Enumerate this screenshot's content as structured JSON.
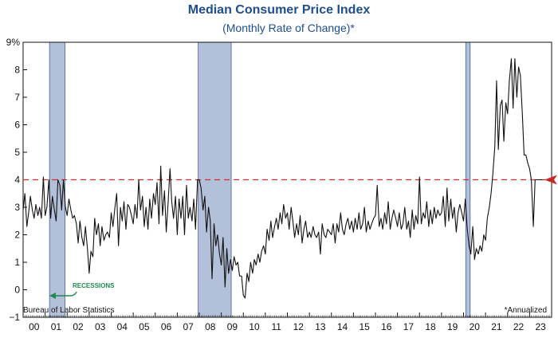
{
  "chart_data": {
    "type": "line",
    "title": "Median Consumer Price Index",
    "subtitle": "(Monthly Rate of Change)*",
    "source": "Bureau of Labor Statistics",
    "footnote": "*Annualized",
    "annotation": "RECESSIONS",
    "ylim": [
      -1,
      9
    ],
    "y_ticks": [
      "9%",
      "8",
      "7",
      "6",
      "5",
      "4",
      "3",
      "2",
      "1",
      "0",
      "−1"
    ],
    "y_tick_values": [
      9,
      8,
      7,
      6,
      5,
      4,
      3,
      2,
      1,
      0,
      -1
    ],
    "x_start_year": 2000,
    "x_end_year": 2024,
    "x_tick_labels": [
      "00",
      "01",
      "02",
      "03",
      "04",
      "05",
      "06",
      "07",
      "08",
      "09",
      "10",
      "11",
      "12",
      "13",
      "14",
      "15",
      "16",
      "17",
      "18",
      "19",
      "20",
      "21",
      "22",
      "23"
    ],
    "reference_line": {
      "value": 4.0,
      "style": "dashed",
      "color": "#d22b2b"
    },
    "recessions": [
      {
        "start": 2001.2,
        "end": 2001.9
      },
      {
        "start": 2007.95,
        "end": 2009.45
      },
      {
        "start": 2020.1,
        "end": 2020.3
      }
    ],
    "series": [
      {
        "color": "#111111",
        "x": [
          2000.0,
          2000.08,
          2000.17,
          2000.25,
          2000.33,
          2000.42,
          2000.5,
          2000.58,
          2000.67,
          2000.75,
          2000.83,
          2000.92,
          2001.0,
          2001.08,
          2001.17,
          2001.25,
          2001.33,
          2001.42,
          2001.5,
          2001.58,
          2001.67,
          2001.75,
          2001.83,
          2001.92,
          2002.0,
          2002.08,
          2002.17,
          2002.25,
          2002.33,
          2002.42,
          2002.5,
          2002.58,
          2002.67,
          2002.75,
          2002.83,
          2002.92,
          2003.0,
          2003.08,
          2003.17,
          2003.25,
          2003.33,
          2003.42,
          2003.5,
          2003.58,
          2003.67,
          2003.75,
          2003.83,
          2003.92,
          2004.0,
          2004.08,
          2004.17,
          2004.25,
          2004.33,
          2004.42,
          2004.5,
          2004.58,
          2004.67,
          2004.75,
          2004.83,
          2004.92,
          2005.0,
          2005.08,
          2005.17,
          2005.25,
          2005.33,
          2005.42,
          2005.5,
          2005.58,
          2005.67,
          2005.75,
          2005.83,
          2005.92,
          2006.0,
          2006.08,
          2006.17,
          2006.25,
          2006.33,
          2006.42,
          2006.5,
          2006.58,
          2006.67,
          2006.75,
          2006.83,
          2006.92,
          2007.0,
          2007.08,
          2007.17,
          2007.25,
          2007.33,
          2007.42,
          2007.5,
          2007.58,
          2007.67,
          2007.75,
          2007.83,
          2007.92,
          2008.0,
          2008.08,
          2008.17,
          2008.25,
          2008.33,
          2008.42,
          2008.5,
          2008.58,
          2008.67,
          2008.75,
          2008.83,
          2008.92,
          2009.0,
          2009.08,
          2009.17,
          2009.25,
          2009.33,
          2009.42,
          2009.5,
          2009.58,
          2009.67,
          2009.75,
          2009.83,
          2009.92,
          2010.0,
          2010.08,
          2010.17,
          2010.25,
          2010.33,
          2010.42,
          2010.5,
          2010.58,
          2010.67,
          2010.75,
          2010.83,
          2010.92,
          2011.0,
          2011.08,
          2011.17,
          2011.25,
          2011.33,
          2011.42,
          2011.5,
          2011.58,
          2011.67,
          2011.75,
          2011.83,
          2011.92,
          2012.0,
          2012.08,
          2012.17,
          2012.25,
          2012.33,
          2012.42,
          2012.5,
          2012.58,
          2012.67,
          2012.75,
          2012.83,
          2012.92,
          2013.0,
          2013.08,
          2013.17,
          2013.25,
          2013.33,
          2013.42,
          2013.5,
          2013.58,
          2013.67,
          2013.75,
          2013.83,
          2013.92,
          2014.0,
          2014.08,
          2014.17,
          2014.25,
          2014.33,
          2014.42,
          2014.5,
          2014.58,
          2014.67,
          2014.75,
          2014.83,
          2014.92,
          2015.0,
          2015.08,
          2015.17,
          2015.25,
          2015.33,
          2015.42,
          2015.5,
          2015.58,
          2015.67,
          2015.75,
          2015.83,
          2015.92,
          2016.0,
          2016.08,
          2016.17,
          2016.25,
          2016.33,
          2016.42,
          2016.5,
          2016.58,
          2016.67,
          2016.75,
          2016.83,
          2016.92,
          2017.0,
          2017.08,
          2017.17,
          2017.25,
          2017.33,
          2017.42,
          2017.5,
          2017.58,
          2017.67,
          2017.75,
          2017.83,
          2017.92,
          2018.0,
          2018.08,
          2018.17,
          2018.25,
          2018.33,
          2018.42,
          2018.5,
          2018.58,
          2018.67,
          2018.75,
          2018.83,
          2018.92,
          2019.0,
          2019.08,
          2019.17,
          2019.25,
          2019.33,
          2019.42,
          2019.5,
          2019.58,
          2019.67,
          2019.75,
          2019.83,
          2019.92,
          2020.0,
          2020.08,
          2020.17,
          2020.25,
          2020.33,
          2020.42,
          2020.5,
          2020.58,
          2020.67,
          2020.75,
          2020.83,
          2020.92,
          2021.0,
          2021.08,
          2021.17,
          2021.25,
          2021.33,
          2021.42,
          2021.5,
          2021.58,
          2021.67,
          2021.75,
          2021.83,
          2021.92,
          2022.0,
          2022.08,
          2022.17,
          2022.25,
          2022.33,
          2022.42,
          2022.5,
          2022.58,
          2022.67,
          2022.75,
          2022.83,
          2022.92,
          2023.0,
          2023.08,
          2023.17,
          2023.25,
          2023.33,
          2023.42,
          2023.5,
          2023.58
        ],
        "values": [
          2.9,
          3.5,
          2.3,
          2.8,
          3.4,
          2.9,
          2.6,
          3.1,
          2.7,
          3.0,
          2.6,
          4.1,
          2.7,
          3.0,
          4.0,
          2.6,
          3.4,
          2.9,
          2.5,
          4.0,
          3.8,
          2.9,
          4.0,
          3.0,
          2.7,
          3.3,
          2.9,
          2.6,
          2.7,
          2.4,
          1.7,
          2.5,
          1.9,
          1.6,
          2.3,
          1.5,
          0.6,
          1.4,
          1.2,
          2.6,
          2.0,
          2.4,
          1.6,
          2.3,
          1.8,
          2.0,
          2.1,
          1.9,
          2.8,
          2.3,
          3.0,
          3.5,
          1.6,
          3.0,
          2.5,
          3.2,
          2.2,
          3.1,
          3.0,
          2.7,
          2.4,
          3.1,
          2.6,
          4.0,
          2.9,
          3.4,
          2.3,
          3.0,
          2.2,
          3.3,
          2.6,
          3.5,
          3.1,
          3.9,
          2.4,
          4.5,
          2.7,
          3.6,
          2.1,
          3.1,
          4.4,
          3.2,
          2.6,
          3.4,
          2.0,
          3.3,
          2.6,
          3.4,
          2.0,
          3.8,
          2.6,
          3.0,
          2.5,
          3.3,
          2.2,
          4.0,
          4.0,
          3.7,
          2.9,
          3.4,
          2.1,
          3.0,
          2.5,
          0.4,
          2.4,
          1.6,
          2.0,
          1.3,
          0.9,
          1.9,
          0.1,
          1.5,
          0.6,
          1.1,
          0.7,
          1.2,
          0.9,
          1.0,
          0.5,
          0.5,
          -0.2,
          -0.3,
          0.6,
          0.3,
          1.0,
          0.6,
          1.1,
          0.9,
          1.3,
          1.0,
          1.4,
          1.6,
          1.3,
          2.2,
          1.8,
          2.5,
          1.9,
          2.3,
          2.6,
          2.2,
          2.8,
          2.4,
          3.1,
          2.6,
          2.8,
          2.2,
          3.0,
          2.5,
          1.9,
          2.4,
          2.0,
          2.7,
          1.7,
          2.2,
          2.5,
          1.9,
          2.1,
          1.9,
          2.3,
          2.0,
          1.9,
          2.1,
          1.3,
          2.4,
          2.0,
          1.9,
          2.2,
          2.1,
          2.0,
          2.4,
          1.7,
          2.4,
          2.1,
          2.8,
          2.2,
          2.0,
          2.4,
          2.6,
          2.2,
          2.5,
          2.1,
          2.6,
          2.2,
          2.8,
          2.2,
          2.4,
          3.0,
          2.1,
          2.5,
          2.2,
          2.4,
          2.6,
          2.7,
          3.8,
          2.3,
          2.6,
          2.2,
          2.8,
          2.4,
          3.2,
          2.2,
          2.6,
          2.9,
          2.6,
          2.3,
          2.8,
          2.2,
          2.4,
          3.0,
          2.2,
          2.5,
          1.9,
          2.9,
          2.2,
          2.7,
          2.4,
          4.1,
          2.4,
          2.8,
          2.6,
          3.2,
          2.3,
          2.9,
          2.4,
          3.0,
          2.6,
          2.9,
          2.7,
          2.8,
          3.4,
          2.3,
          3.7,
          2.5,
          3.3,
          2.6,
          3.0,
          2.1,
          2.8,
          3.1,
          2.8,
          2.5,
          3.3,
          2.2,
          1.6,
          1.3,
          2.3,
          1.1,
          1.5,
          1.3,
          1.6,
          1.4,
          2.0,
          1.8,
          2.6,
          3.0,
          3.5,
          4.2,
          5.2,
          7.6,
          5.1,
          6.7,
          6.9,
          5.4,
          6.8,
          6.4,
          7.6,
          8.4,
          6.6,
          8.4,
          7.0,
          8.1,
          7.8,
          6.4,
          4.9,
          4.9,
          4.6,
          4.4,
          4.0,
          2.3,
          4.0,
          4.0,
          4.0,
          4.0,
          4.0
        ]
      }
    ]
  }
}
